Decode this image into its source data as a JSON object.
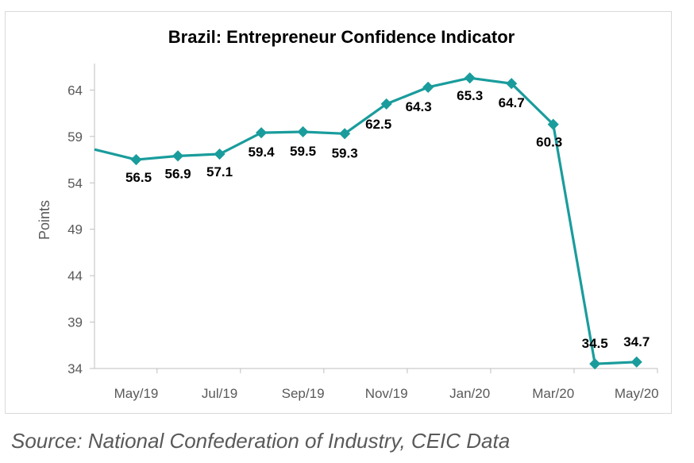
{
  "chart_data": {
    "type": "line",
    "title": "Brazil: Entrepreneur Confidence Indicator",
    "ylabel": "Points",
    "xlabel": "",
    "ylim": [
      34,
      66
    ],
    "yticks": [
      34,
      39,
      44,
      49,
      54,
      59,
      64
    ],
    "x_tick_labels": [
      "May/19",
      "Jul/19",
      "Sep/19",
      "Nov/19",
      "Jan/20",
      "Mar/20",
      "May/20"
    ],
    "x": [
      "Apr/19",
      "May/19",
      "Jun/19",
      "Jul/19",
      "Aug/19",
      "Sep/19",
      "Oct/19",
      "Nov/19",
      "Dec/19",
      "Jan/20",
      "Feb/20",
      "Mar/20",
      "Apr/20",
      "May/20"
    ],
    "values": [
      57.6,
      56.5,
      56.9,
      57.1,
      59.4,
      59.5,
      59.3,
      62.5,
      64.3,
      65.3,
      64.7,
      60.3,
      34.5,
      34.7
    ],
    "data_labels": [
      null,
      "56.5",
      "56.9",
      "57.1",
      "59.4",
      "59.5",
      "59.3",
      "62.5",
      "64.3",
      "65.3",
      "64.7",
      "60.3",
      "34.5",
      "34.7"
    ],
    "grid": false,
    "legend": "none",
    "line_color": "#1a9c9c"
  },
  "source": "Source: National Confederation of Industry, CEIC Data"
}
